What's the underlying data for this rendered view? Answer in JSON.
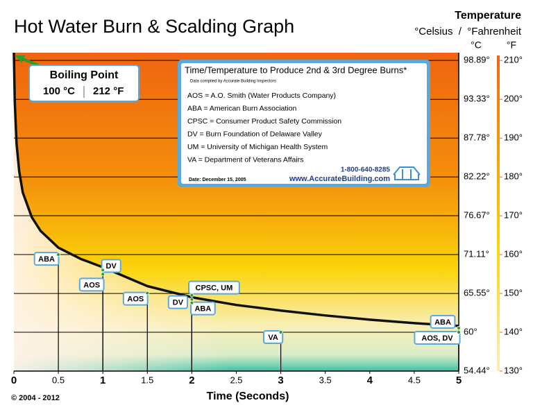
{
  "chart_data": {
    "type": "line",
    "title": "Hot Water Burn & Scalding Graph",
    "y_axis_title": "Temperature",
    "y_axis_subtitle": "°Celsius  /  °Fahrenheit",
    "y_unit": "°C",
    "y2_unit": "°F",
    "x_axis_title": "Time (Seconds)",
    "copyright": "© 2004 - 2012",
    "xlim": [
      0,
      5
    ],
    "xticks": [
      0,
      0.5,
      1,
      1.5,
      2,
      2.5,
      3,
      3.5,
      4,
      4.5,
      5
    ],
    "ylim": [
      54.44,
      100
    ],
    "yticks": [
      {
        "value": 54.44,
        "label": "54.44°"
      },
      {
        "value": 60,
        "label": "60°"
      },
      {
        "value": 65.55,
        "label": "65.55°"
      },
      {
        "value": 71.11,
        "label": "71.11°"
      },
      {
        "value": 76.67,
        "label": "76.67°"
      },
      {
        "value": 82.22,
        "label": "82.22°"
      },
      {
        "value": 87.78,
        "label": "87.78°"
      },
      {
        "value": 93.33,
        "label": "93.33°"
      },
      {
        "value": 98.89,
        "label": "98.89°"
      }
    ],
    "y2lim": [
      130,
      212
    ],
    "y2ticks": [
      {
        "value": 130,
        "label": "130°"
      },
      {
        "value": 140,
        "label": "140°"
      },
      {
        "value": 150,
        "label": "150°"
      },
      {
        "value": 160,
        "label": "160°"
      },
      {
        "value": 170,
        "label": "170°"
      },
      {
        "value": 180,
        "label": "180°"
      },
      {
        "value": 190,
        "label": "190°"
      },
      {
        "value": 200,
        "label": "200°"
      },
      {
        "value": 210,
        "label": "210°"
      }
    ],
    "grid": true,
    "curve": {
      "color": "#111111",
      "x": [
        0,
        0.01,
        0.03,
        0.06,
        0.1,
        0.2,
        0.3,
        0.5,
        0.75,
        1,
        1.5,
        2,
        2.5,
        3,
        3.5,
        4,
        4.5,
        5
      ],
      "values": [
        100,
        93,
        87,
        83,
        80,
        76.5,
        74.5,
        72.1,
        70.5,
        69.3,
        66.6,
        65,
        63.9,
        63.1,
        62.4,
        61.8,
        61.3,
        60.9
      ]
    },
    "points": [
      {
        "label": "ABA",
        "x": 0.5,
        "value": 71.1
      },
      {
        "label": "DV",
        "x": 1,
        "value": 68.9
      },
      {
        "label": "AOS",
        "x": 1,
        "value": 68.3
      },
      {
        "label": "AOS",
        "x": 1.5,
        "value": 65.6
      },
      {
        "label": "CPSC, UM",
        "x": 2,
        "value": 65.3
      },
      {
        "label": "DV",
        "x": 2,
        "value": 64.7
      },
      {
        "label": "ABA",
        "x": 2,
        "value": 64.2
      },
      {
        "label": "VA",
        "x": 3,
        "value": 60
      },
      {
        "label": "ABA",
        "x": 5,
        "value": 60.6
      },
      {
        "label": "AOS, DV",
        "x": 5,
        "value": 60
      }
    ],
    "point_color": "#2e9b2e",
    "boiling_point": {
      "title": "Boiling Point",
      "celsius": "100 °C",
      "fahrenheit": "212 °F"
    },
    "legend_box": {
      "title": "Time/Temperature to Produce 2nd & 3rd Degree Burns*",
      "note": "Data compiled by Accurate Building Inspectors",
      "entries": [
        "AOS = A.O. Smith (Water Products Company)",
        "ABA = American Burn Association",
        "CPSC = Consumer Product Safety Commission",
        "DV = Burn Foundation of Delaware Valley",
        "UM = University of Michigan Health System",
        "VA = Department of Veterans Affairs"
      ],
      "phone": "1-800-640-8285",
      "website": "www.AccurateBuilding.com",
      "date": "Date: December 15, 2005"
    }
  }
}
